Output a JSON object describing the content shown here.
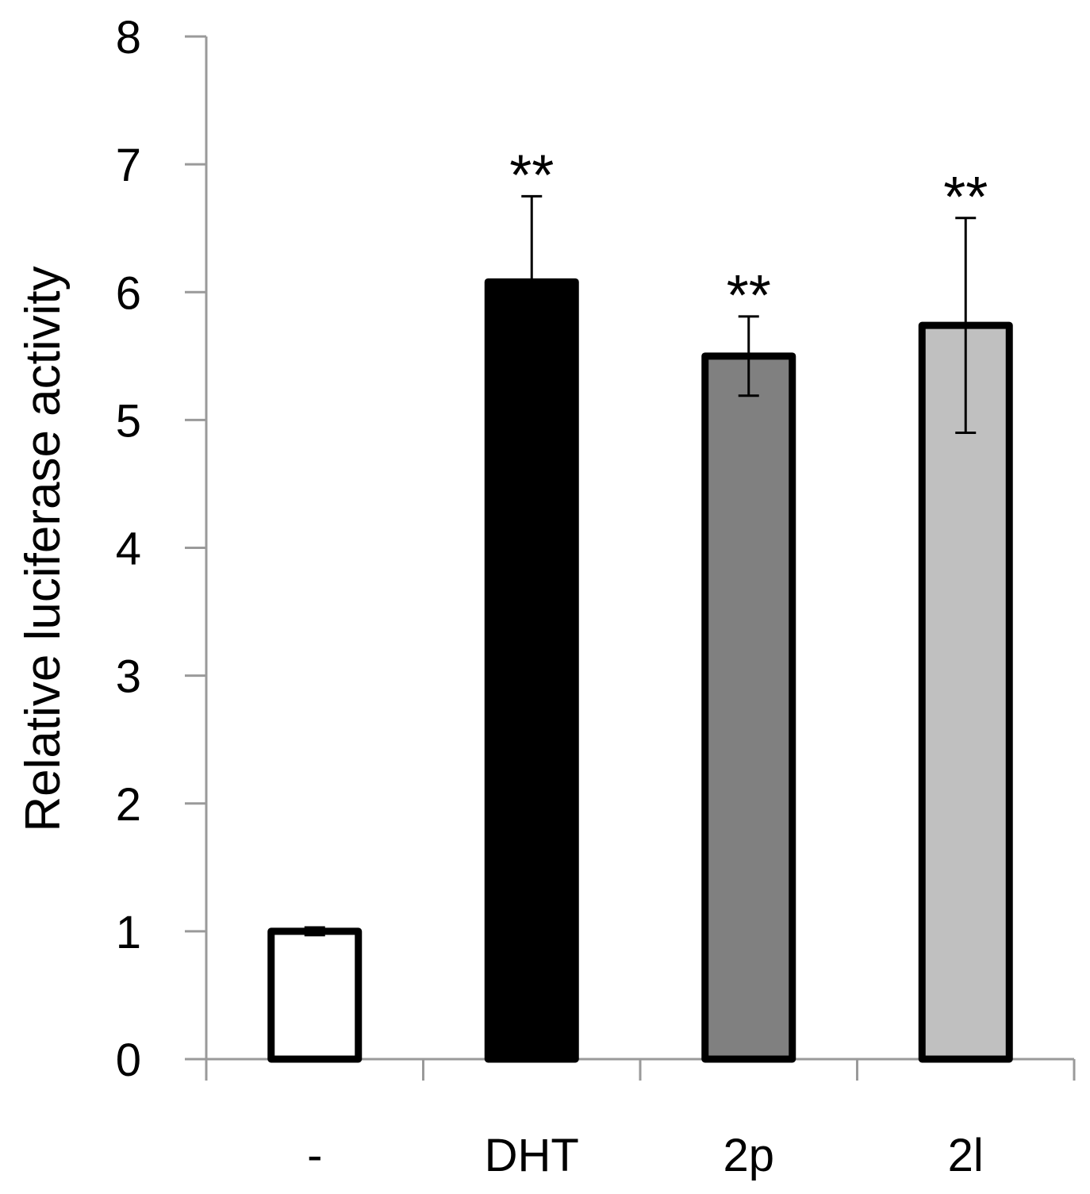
{
  "chart_data": {
    "type": "bar",
    "title": "",
    "xlabel": "",
    "ylabel": "Relative luciferase activity",
    "ylim": [
      0,
      8
    ],
    "yticks": [
      0,
      1,
      2,
      3,
      4,
      5,
      6,
      7,
      8
    ],
    "grid": false,
    "categories": [
      "-",
      "DHT",
      "2p",
      "2l"
    ],
    "values": [
      1.0,
      6.08,
      5.5,
      5.74
    ],
    "errors": [
      0.03,
      0.67,
      0.31,
      0.84
    ],
    "annotations": [
      "",
      "**",
      "**",
      "**"
    ],
    "fill_colors": [
      "#ffffff",
      "#000000",
      "#808080",
      "#c0c0c0"
    ],
    "edge_color": "#000000",
    "axis_color": "#9a9a9a"
  }
}
